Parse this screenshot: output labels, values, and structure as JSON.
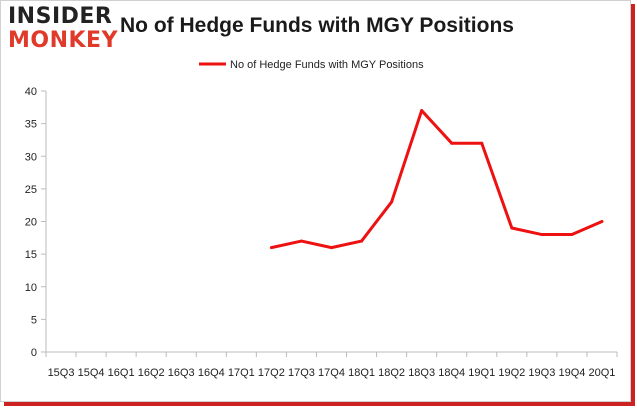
{
  "logo": {
    "line1": "INSIDER",
    "line2": "MONKEY"
  },
  "chart_data": {
    "type": "line",
    "title": "No of Hedge Funds with MGY Positions",
    "xlabel": "",
    "ylabel": "",
    "categories": [
      "15Q3",
      "15Q4",
      "16Q1",
      "16Q2",
      "16Q3",
      "16Q4",
      "17Q1",
      "17Q2",
      "17Q3",
      "17Q4",
      "18Q1",
      "18Q2",
      "18Q3",
      "18Q4",
      "19Q1",
      "19Q2",
      "19Q3",
      "19Q4",
      "20Q1"
    ],
    "series": [
      {
        "name": "No of Hedge Funds with MGY Positions",
        "color": "#ee1111",
        "values": [
          null,
          null,
          null,
          null,
          null,
          null,
          null,
          16,
          17,
          16,
          17,
          23,
          37,
          32,
          32,
          19,
          18,
          18,
          20
        ]
      }
    ],
    "ylim": [
      0,
      40
    ],
    "yticks": [
      0,
      5,
      10,
      15,
      20,
      25,
      30,
      35,
      40
    ],
    "grid": false,
    "legend_position": "top-center"
  }
}
